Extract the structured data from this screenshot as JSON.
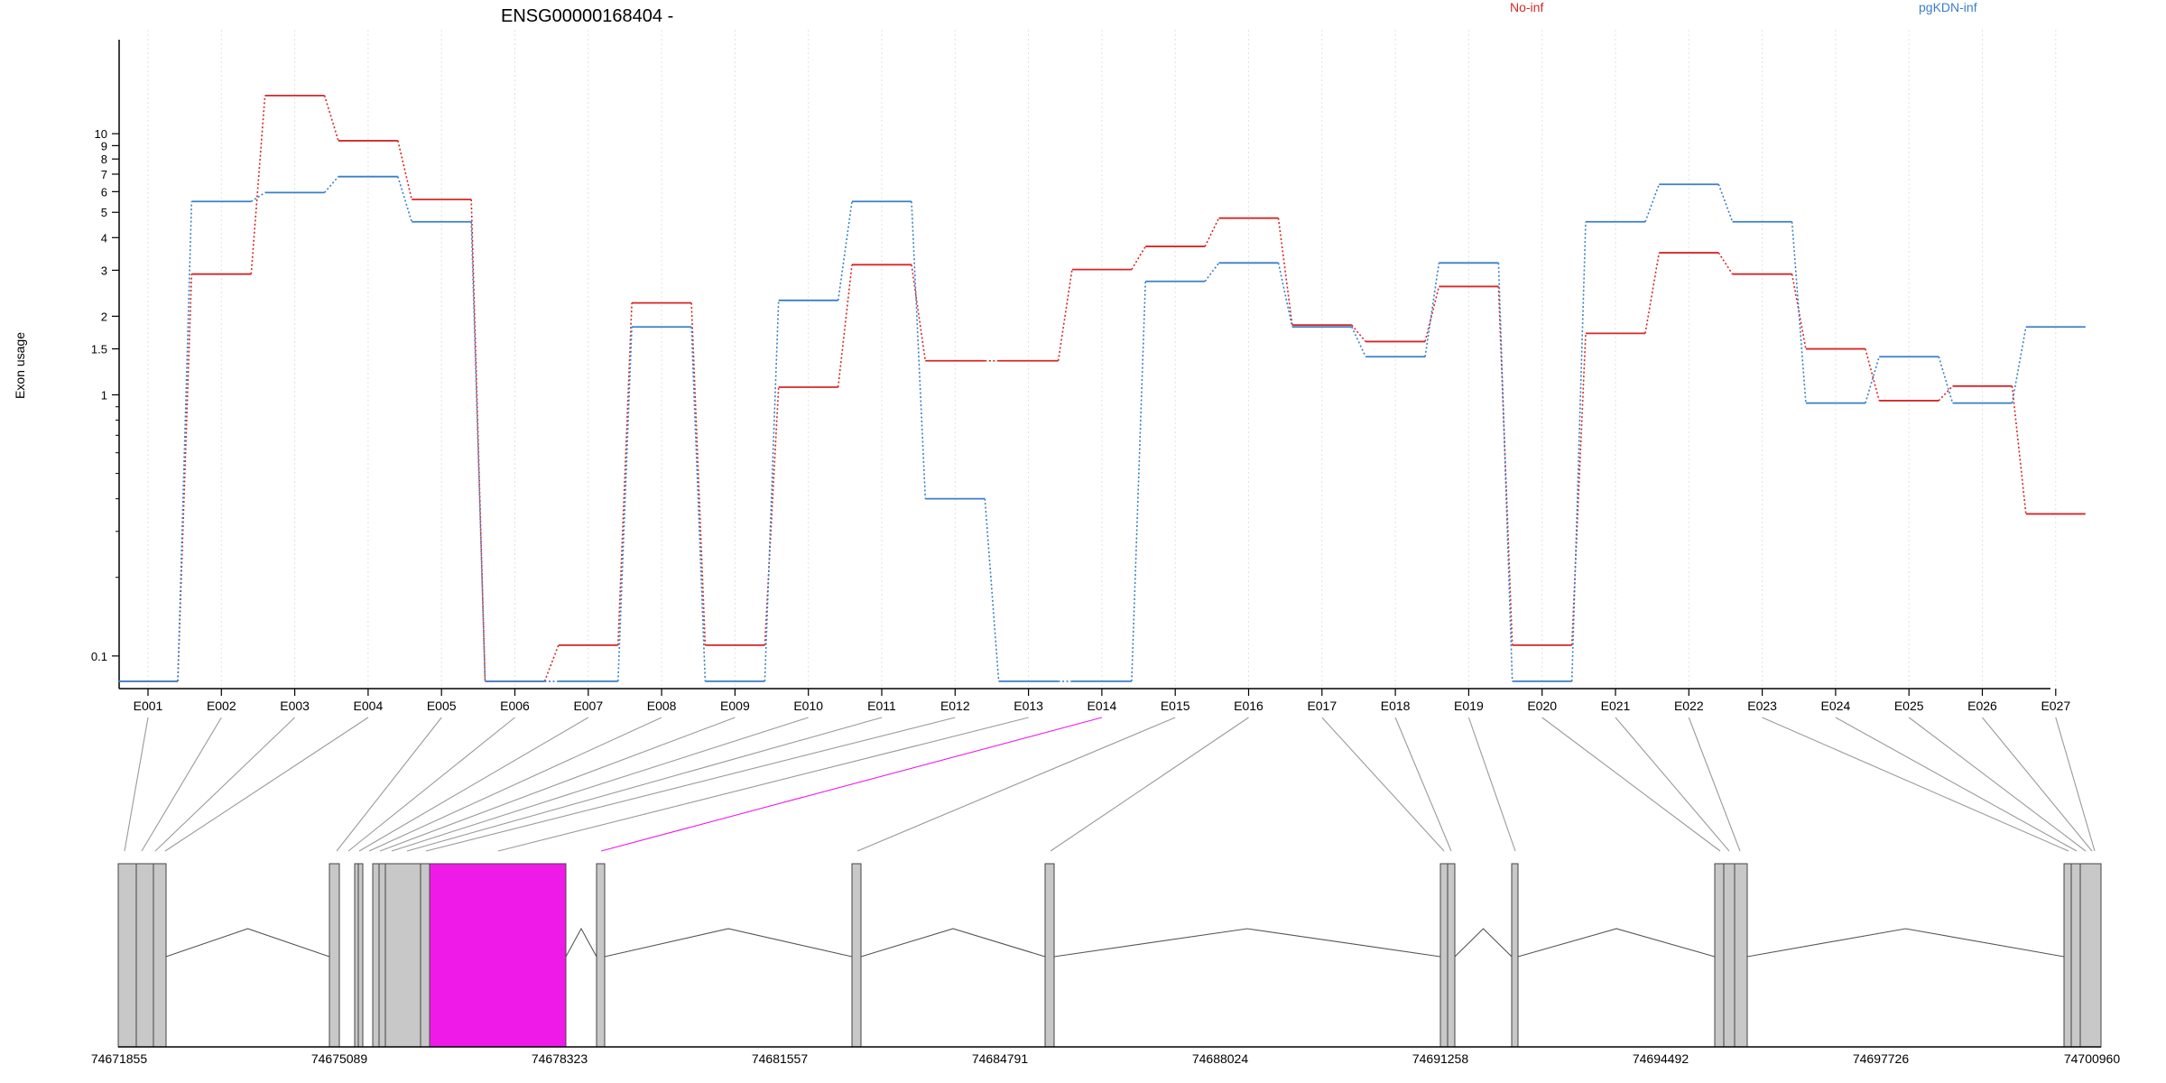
{
  "chart_data": {
    "type": "line",
    "title": "ENSG00000168404 -",
    "xlabel": "",
    "ylabel": "Exon usage",
    "y_scale": "log",
    "ylim": [
      0.075,
      25
    ],
    "y_ticks": [
      "0.1",
      "1",
      "1.5",
      "2",
      "3",
      "4",
      "5",
      "6",
      "7",
      "8",
      "9",
      "10"
    ],
    "grid": "vertical dotted",
    "legend_position": "top",
    "categories": [
      "E001",
      "E002",
      "E003",
      "E004",
      "E005",
      "E006",
      "E007",
      "E008",
      "E009",
      "E010",
      "E011",
      "E012",
      "E013",
      "E014",
      "E015",
      "E016",
      "E017",
      "E018",
      "E019",
      "E020",
      "E021",
      "E022",
      "E023",
      "E024",
      "E025",
      "E026",
      "E027"
    ],
    "series": [
      {
        "name": "No-inf",
        "color": "#d62728",
        "values": [
          0.08,
          2.9,
          14.0,
          9.4,
          5.6,
          0.08,
          0.11,
          2.25,
          0.11,
          1.07,
          3.15,
          1.35,
          1.35,
          3.02,
          3.7,
          4.75,
          1.85,
          1.6,
          2.6,
          0.11,
          1.72,
          3.5,
          2.9,
          1.5,
          0.95,
          1.08,
          0.35
        ]
      },
      {
        "name": "pgKDN-inf",
        "color": "#3a7fc8",
        "values": [
          0.08,
          5.5,
          5.95,
          6.85,
          4.6,
          0.08,
          0.08,
          1.82,
          0.08,
          2.3,
          5.5,
          0.4,
          0.08,
          0.08,
          2.72,
          3.2,
          1.82,
          1.4,
          3.2,
          0.08,
          4.6,
          6.4,
          4.6,
          0.93,
          1.4,
          0.93,
          1.82
        ]
      }
    ],
    "gene_model": {
      "highlight_exon": "E014",
      "highlight_color": "#f01ae8",
      "coordinates": [
        "74671855",
        "74675089",
        "74678323",
        "74681557",
        "74684791",
        "74688024",
        "74691258",
        "74694492",
        "74697726",
        "74700960"
      ]
    }
  }
}
